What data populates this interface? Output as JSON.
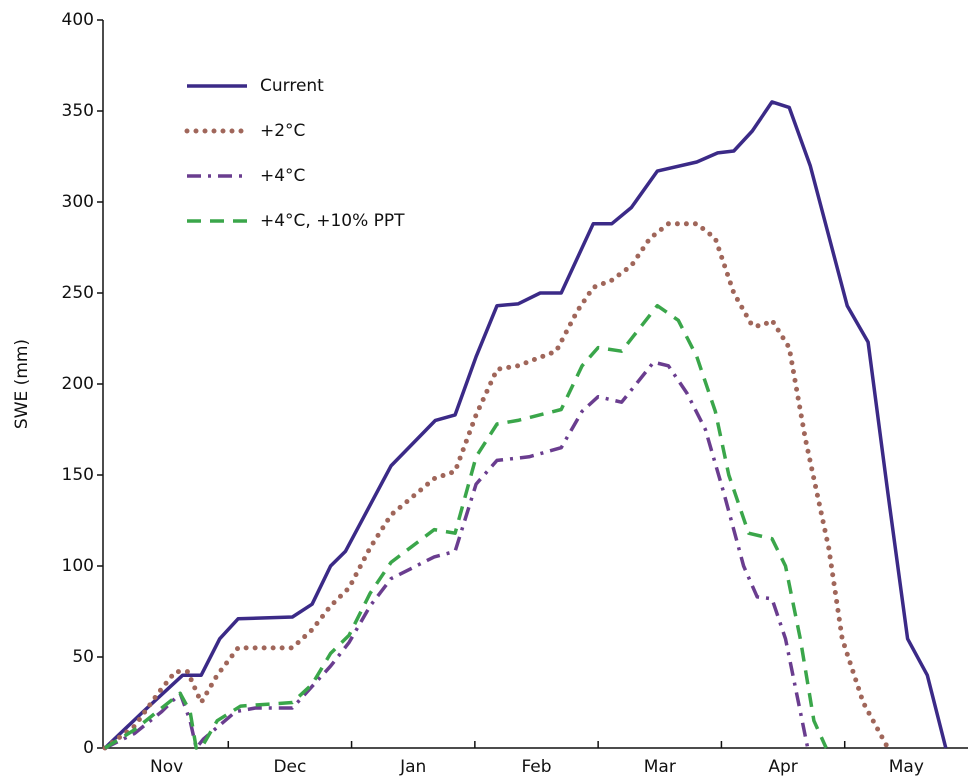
{
  "chart_data": {
    "type": "line",
    "y_label": "SWE (mm)",
    "categories": [
      "Nov",
      "Dec",
      "Jan",
      "Feb",
      "Mar",
      "Apr",
      "May"
    ],
    "xlim": [
      0,
      7
    ],
    "ylim": [
      0,
      400
    ],
    "yticks": [
      0,
      50,
      100,
      150,
      200,
      250,
      300,
      350,
      400
    ],
    "grid": false,
    "legend": "upper-left",
    "series": [
      {
        "name": "Current",
        "color": "#3b2a87",
        "style": "solid",
        "x": [
          0,
          0.31,
          0.63,
          0.78,
          0.93,
          1.08,
          1.52,
          1.68,
          1.83,
          1.95,
          2.32,
          2.68,
          2.84,
          3.01,
          3.18,
          3.35,
          3.53,
          3.7,
          3.96,
          4.11,
          4.27,
          4.48,
          4.8,
          4.97,
          5.1,
          5.25,
          5.41,
          5.55,
          5.72,
          6.02,
          6.19,
          6.35,
          6.51,
          6.67,
          6.82
        ],
        "values": [
          0,
          20,
          40,
          40,
          60,
          71,
          72,
          79,
          100,
          108,
          155,
          180,
          183,
          215,
          243,
          244,
          250,
          250,
          288,
          288,
          297,
          317,
          322,
          327,
          328,
          339,
          355,
          352,
          320,
          243,
          223,
          140,
          60,
          40,
          0
        ]
      },
      {
        "name": "+2°C",
        "color": "#a0665a",
        "style": "dotted",
        "x": [
          0,
          0.24,
          0.43,
          0.57,
          0.67,
          0.78,
          0.91,
          1.08,
          1.52,
          1.68,
          1.83,
          1.98,
          2.15,
          2.32,
          2.67,
          2.84,
          3.01,
          3.18,
          3.35,
          3.66,
          3.83,
          3.96,
          4.11,
          4.27,
          4.42,
          4.57,
          4.8,
          4.95,
          5.1,
          5.25,
          5.33,
          5.41,
          5.55,
          5.68,
          5.87,
          5.98,
          6.15,
          6.35
        ],
        "values": [
          0,
          12,
          30,
          42,
          42,
          25,
          40,
          55,
          55,
          65,
          78,
          88,
          110,
          128,
          148,
          152,
          183,
          208,
          210,
          218,
          240,
          253,
          257,
          265,
          280,
          288,
          288,
          280,
          250,
          232,
          232,
          235,
          220,
          170,
          110,
          60,
          25,
          0
        ]
      },
      {
        "name": "+4°C",
        "color": "#6a3d8f",
        "style": "dashdot",
        "x": [
          0,
          0.24,
          0.46,
          0.61,
          0.69,
          0.74,
          0.8,
          1.06,
          1.22,
          1.52,
          1.83,
          1.98,
          2.15,
          2.32,
          2.67,
          2.84,
          3.01,
          3.18,
          3.44,
          3.7,
          3.87,
          4.0,
          4.19,
          4.45,
          4.57,
          4.72,
          4.87,
          5.02,
          5.18,
          5.29,
          5.41,
          5.52,
          5.64,
          5.7
        ],
        "values": [
          0,
          8,
          20,
          30,
          15,
          0,
          5,
          20,
          22,
          22,
          45,
          58,
          78,
          93,
          105,
          108,
          145,
          158,
          160,
          165,
          185,
          193,
          190,
          212,
          210,
          195,
          175,
          140,
          100,
          83,
          82,
          60,
          20,
          0
        ]
      },
      {
        "name": "+4°C, +10% PPT",
        "color": "#3aa64a",
        "style": "dashed",
        "x": [
          0,
          0.24,
          0.46,
          0.61,
          0.69,
          0.74,
          0.78,
          0.91,
          1.1,
          1.52,
          1.68,
          1.83,
          1.98,
          2.15,
          2.32,
          2.67,
          2.84,
          3.01,
          3.18,
          3.35,
          3.7,
          3.87,
          4.0,
          4.19,
          4.48,
          4.65,
          4.8,
          4.95,
          5.06,
          5.22,
          5.41,
          5.52,
          5.64,
          5.75,
          5.85
        ],
        "values": [
          0,
          10,
          22,
          30,
          20,
          0,
          0,
          15,
          23,
          25,
          35,
          52,
          62,
          85,
          102,
          120,
          118,
          160,
          178,
          180,
          186,
          210,
          220,
          218,
          243,
          235,
          215,
          185,
          150,
          118,
          115,
          100,
          60,
          15,
          0
        ]
      }
    ]
  }
}
